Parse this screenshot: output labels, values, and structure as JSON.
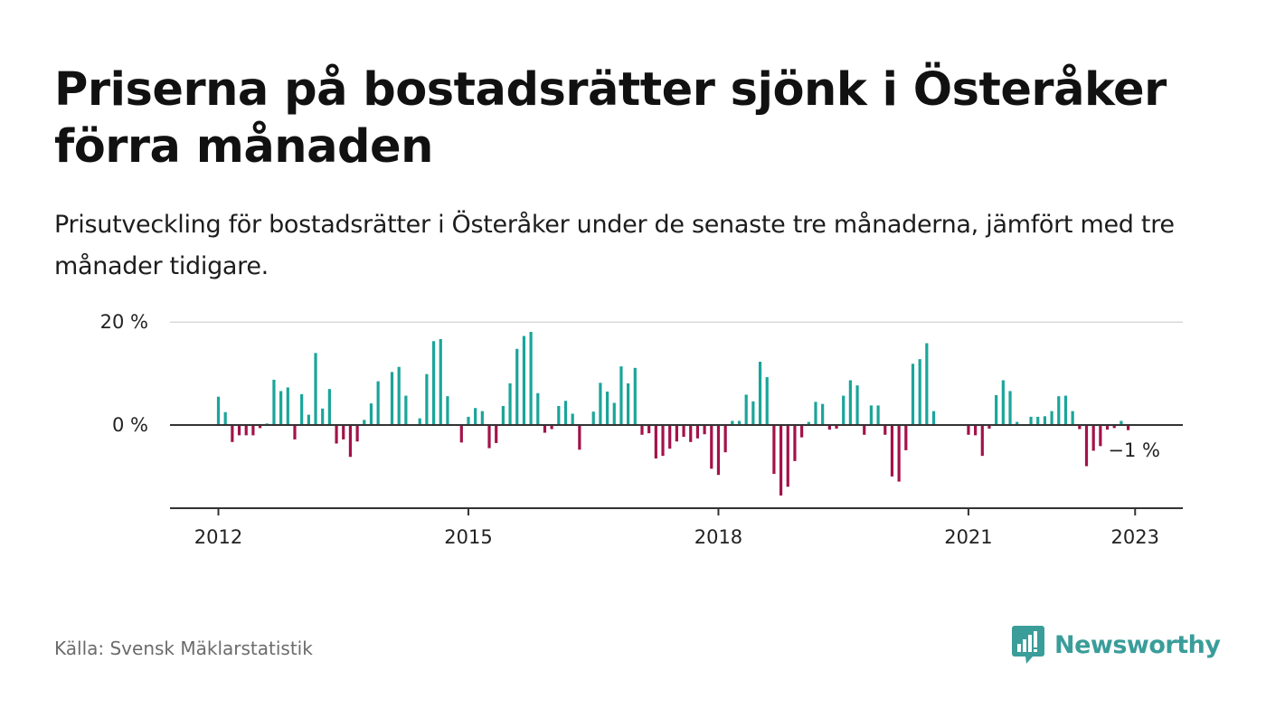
{
  "header": {
    "title": "Priserna på bostadsrätter sjönk i Österåker förra månaden",
    "subtitle": "Prisutveckling för bostadsrätter i Österåker under de senaste tre månaderna, jämfört med tre månader tidigare."
  },
  "footer": {
    "source": "Källa: Svensk Mäklarstatistik",
    "brand": "Newsworthy"
  },
  "colors": {
    "positive": "#1aa59a",
    "negative": "#a3124a",
    "axis": "#333333",
    "grid": "#d9d9d9",
    "brand": "#3a9d9a"
  },
  "chart_data": {
    "type": "bar",
    "unit": "%",
    "y_ticks": [
      "20 %",
      "0 %"
    ],
    "y_tick_values": [
      20,
      0
    ],
    "x_tick_labels": [
      "2012",
      "2015",
      "2018",
      "2021",
      "2023"
    ],
    "x_tick_months": [
      "2012-01",
      "2015-01",
      "2018-01",
      "2021-01",
      "2023-01"
    ],
    "ylim": [
      -16,
      20
    ],
    "grid": true,
    "last_value_label": "−1 %",
    "x": [
      "2012-01",
      "2012-02",
      "2012-03",
      "2012-04",
      "2012-05",
      "2012-06",
      "2012-07",
      "2012-08",
      "2012-09",
      "2012-10",
      "2012-11",
      "2012-12",
      "2013-01",
      "2013-02",
      "2013-03",
      "2013-04",
      "2013-05",
      "2013-06",
      "2013-07",
      "2013-08",
      "2013-09",
      "2013-10",
      "2013-11",
      "2013-12",
      "2014-01",
      "2014-02",
      "2014-03",
      "2014-04",
      "2014-05",
      "2014-06",
      "2014-07",
      "2014-08",
      "2014-09",
      "2014-10",
      "2014-11",
      "2014-12",
      "2015-01",
      "2015-02",
      "2015-03",
      "2015-04",
      "2015-05",
      "2015-06",
      "2015-07",
      "2015-08",
      "2015-09",
      "2015-10",
      "2015-11",
      "2015-12",
      "2016-01",
      "2016-02",
      "2016-03",
      "2016-04",
      "2016-05",
      "2016-06",
      "2016-07",
      "2016-08",
      "2016-09",
      "2016-10",
      "2016-11",
      "2016-12",
      "2017-01",
      "2017-02",
      "2017-03",
      "2017-04",
      "2017-05",
      "2017-06",
      "2017-07",
      "2017-08",
      "2017-09",
      "2017-10",
      "2017-11",
      "2017-12",
      "2018-01",
      "2018-02",
      "2018-03",
      "2018-04",
      "2018-05",
      "2018-06",
      "2018-07",
      "2018-08",
      "2018-09",
      "2018-10",
      "2018-11",
      "2018-12",
      "2019-01",
      "2019-02",
      "2019-03",
      "2019-04",
      "2019-05",
      "2019-06",
      "2019-07",
      "2019-08",
      "2019-09",
      "2019-10",
      "2019-11",
      "2019-12",
      "2020-01",
      "2020-02",
      "2020-03",
      "2020-04",
      "2020-05",
      "2020-06",
      "2020-07",
      "2020-08",
      "2020-09",
      "2020-10",
      "2020-11",
      "2020-12",
      "2021-01",
      "2021-02",
      "2021-03",
      "2021-04",
      "2021-05",
      "2021-06",
      "2021-07",
      "2021-08",
      "2021-09",
      "2021-10",
      "2021-11",
      "2021-12",
      "2022-01",
      "2022-02",
      "2022-03",
      "2022-04",
      "2022-05",
      "2022-06",
      "2022-07",
      "2022-08",
      "2022-09",
      "2022-10",
      "2022-11",
      "2022-12",
      "2023-01"
    ],
    "values": [
      5.5,
      2.5,
      -3.3,
      -2.0,
      -2.0,
      -2.0,
      -0.6,
      0.3,
      8.8,
      6.6,
      7.3,
      -2.8,
      6.0,
      2.0,
      14.0,
      3.2,
      7.0,
      -3.6,
      -2.8,
      -6.2,
      -3.2,
      1.0,
      4.2,
      8.5,
      null,
      10.3,
      11.3,
      5.7,
      null,
      1.3,
      9.9,
      16.3,
      16.7,
      5.6,
      null,
      -3.4,
      1.6,
      3.3,
      2.7,
      -4.5,
      -3.5,
      3.7,
      8.1,
      14.8,
      17.3,
      18.1,
      6.2,
      -1.5,
      -0.8,
      3.7,
      4.7,
      2.2,
      -4.8,
      null,
      2.6,
      8.2,
      6.5,
      4.3,
      11.4,
      8.1,
      11.1,
      -1.9,
      -1.6,
      -6.5,
      -6.0,
      -4.6,
      -3.2,
      -2.3,
      -3.3,
      -2.6,
      -1.8,
      -8.5,
      -9.7,
      -5.3,
      0.8,
      0.8,
      5.9,
      4.6,
      12.3,
      9.3,
      -9.5,
      -13.7,
      -12.0,
      -7.0,
      -2.4,
      0.6,
      4.5,
      4.1,
      -0.9,
      -0.7,
      5.7,
      8.7,
      7.7,
      -1.9,
      3.8,
      3.8,
      -1.9,
      -10.0,
      -11.0,
      -4.9,
      11.9,
      12.8,
      15.9,
      2.7,
      null,
      null,
      null,
      null,
      -1.9,
      -2.0,
      -6.0,
      -0.7,
      5.8,
      8.7,
      6.6,
      0.6,
      null,
      1.6,
      1.6,
      1.7,
      2.7,
      5.6,
      5.7,
      2.7,
      -0.8,
      -8.0,
      -5.0,
      -4.1,
      -0.9,
      -0.6,
      0.8,
      -1.0,
      null
    ]
  }
}
